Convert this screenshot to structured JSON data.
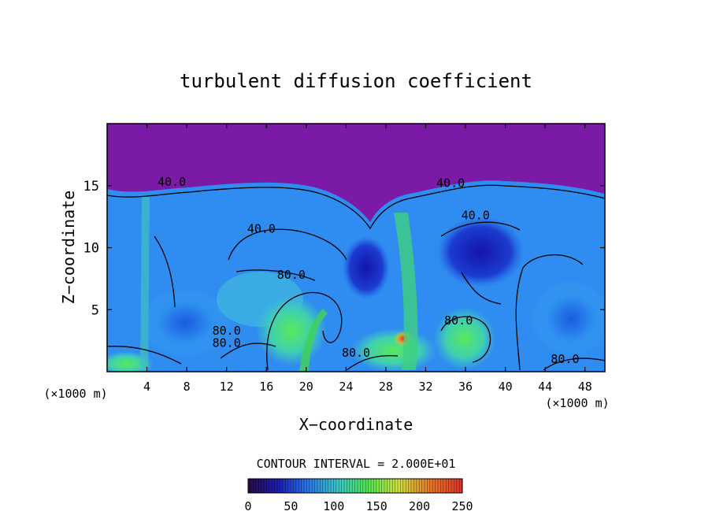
{
  "chart_data": {
    "type": "heatmap",
    "title": "turbulent diffusion coefficient",
    "xlabel": "X−coordinate",
    "ylabel": "Z−coordinate",
    "x_unit_left": "(×1000 m)",
    "x_unit_right": "(×1000 m)",
    "xlim": [
      0,
      50
    ],
    "ylim": [
      0,
      20
    ],
    "x_ticks": [
      4,
      8,
      12,
      16,
      20,
      24,
      28,
      32,
      36,
      40,
      44,
      48
    ],
    "y_ticks": [
      5,
      10,
      15
    ],
    "contour_interval_text": "CONTOUR INTERVAL = 2.000E+01",
    "contour_labels": [
      {
        "text": "40.0",
        "x": 6.5,
        "z": 15.0
      },
      {
        "text": "40.0",
        "x": 15.5,
        "z": 11.2
      },
      {
        "text": "80.0",
        "x": 18.5,
        "z": 7.5
      },
      {
        "text": "40.0",
        "x": 34.5,
        "z": 14.9
      },
      {
        "text": "40.0",
        "x": 37.0,
        "z": 12.3
      },
      {
        "text": "80.0",
        "x": 12.0,
        "z": 3.0
      },
      {
        "text": "80.0",
        "x": 12.0,
        "z": 2.0
      },
      {
        "text": "80.0",
        "x": 25.0,
        "z": 1.2
      },
      {
        "text": "80.0",
        "x": 35.3,
        "z": 3.8
      },
      {
        "text": "80.0",
        "x": 46.0,
        "z": 0.7
      }
    ],
    "colorbar": {
      "min": 0,
      "max": 250,
      "ticks": [
        0,
        50,
        100,
        150,
        200,
        250
      ],
      "colors": [
        "#2a0a44",
        "#1c1cb4",
        "#2878e8",
        "#3cc8c8",
        "#50e650",
        "#d0e040",
        "#e87828",
        "#e03228"
      ]
    },
    "background_color": "#7a1aa6",
    "grid": false,
    "legend": "none"
  }
}
